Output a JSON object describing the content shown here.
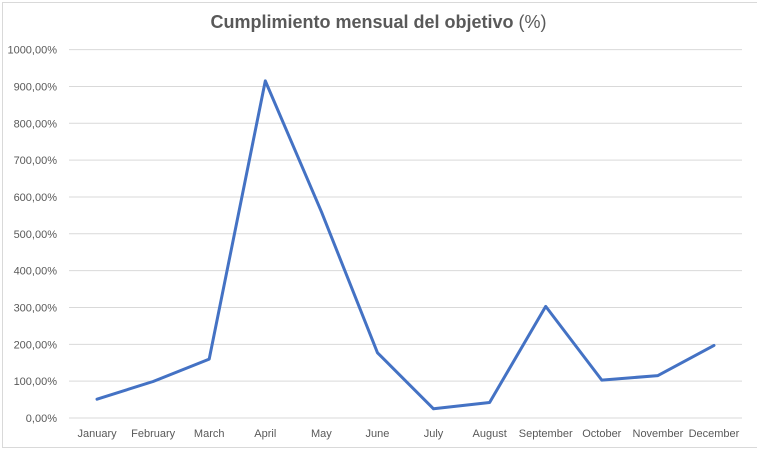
{
  "chart_data": {
    "type": "line",
    "title": "Cumplimiento mensual del objetivo (%)",
    "title_bold_part": "Cumplimiento mensual del objetivo",
    "title_regular_part": " (%)",
    "xlabel": "",
    "ylabel": "",
    "categories": [
      "January",
      "February",
      "March",
      "April",
      "May",
      "June",
      "July",
      "August",
      "September",
      "October",
      "November",
      "December"
    ],
    "series": [
      {
        "name": "Cumplimiento mensual del objetivo (%)",
        "color": "#4472C4",
        "values": [
          51,
          99,
          160,
          915,
          560,
          177,
          25,
          42,
          303,
          103,
          115,
          197
        ]
      }
    ],
    "ylim": [
      0,
      1000
    ],
    "yticks": [
      0,
      100,
      200,
      300,
      400,
      500,
      600,
      700,
      800,
      900,
      1000
    ],
    "ytick_labels": [
      "0,00%",
      "100,00%",
      "200,00%",
      "300,00%",
      "400,00%",
      "500,00%",
      "600,00%",
      "700,00%",
      "800,00%",
      "900,00%",
      "1000,00%"
    ],
    "grid": true,
    "legend": "none"
  },
  "colors": {
    "line": "#4472C4",
    "grid": "#d9d9d9",
    "text": "#595959",
    "border": "#d9d9d9"
  }
}
